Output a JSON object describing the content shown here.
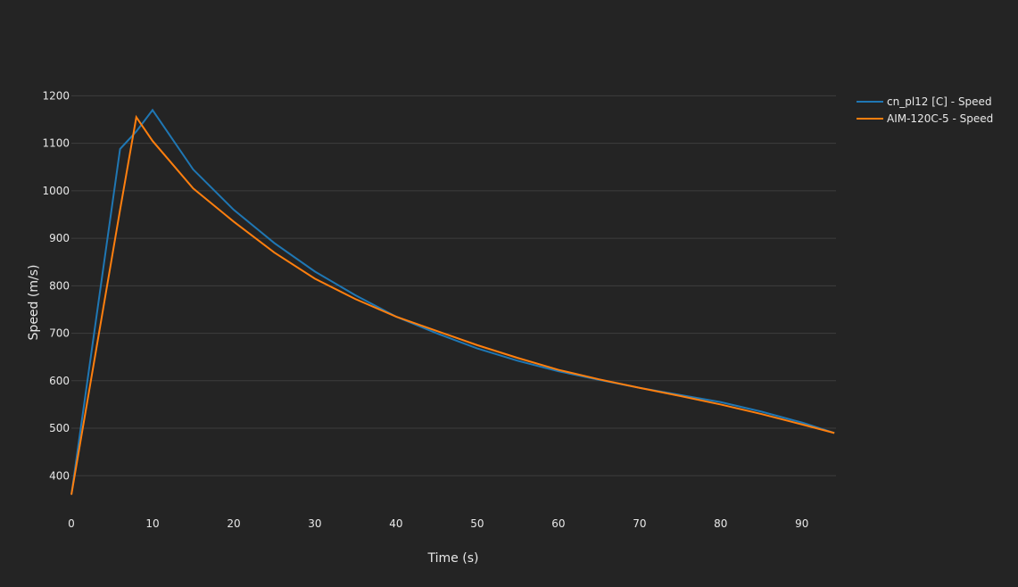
{
  "chart_data": {
    "type": "line",
    "x_label": "Time (s)",
    "y_label": "Speed (m/s)",
    "x": [
      0,
      6,
      8,
      10,
      15,
      20,
      25,
      30,
      35,
      40,
      45,
      50,
      55,
      60,
      65,
      70,
      75,
      80,
      85,
      90,
      94
    ],
    "series": [
      {
        "name": "cn_pl12 [C] - Speed",
        "color": "#1f77b4",
        "values": [
          360,
          1088,
          1125,
          1170,
          1045,
          960,
          890,
          830,
          780,
          735,
          700,
          668,
          642,
          620,
          602,
          585,
          570,
          555,
          535,
          512,
          490
        ]
      },
      {
        "name": "AIM-120C-5 - Speed",
        "color": "#ff7f0e",
        "values": [
          360,
          960,
          1155,
          1105,
          1005,
          935,
          870,
          815,
          772,
          735,
          705,
          675,
          648,
          623,
          603,
          585,
          568,
          550,
          530,
          508,
          490
        ]
      }
    ],
    "xlim": [
      0,
      94.2
    ],
    "ylim": [
      331,
      1212
    ],
    "xticks": [
      0,
      10,
      20,
      30,
      40,
      50,
      60,
      70,
      80,
      90
    ],
    "yticks": [
      400,
      500,
      600,
      700,
      800,
      900,
      1000,
      1100,
      1200
    ],
    "grid": true,
    "legend": "top-right"
  }
}
